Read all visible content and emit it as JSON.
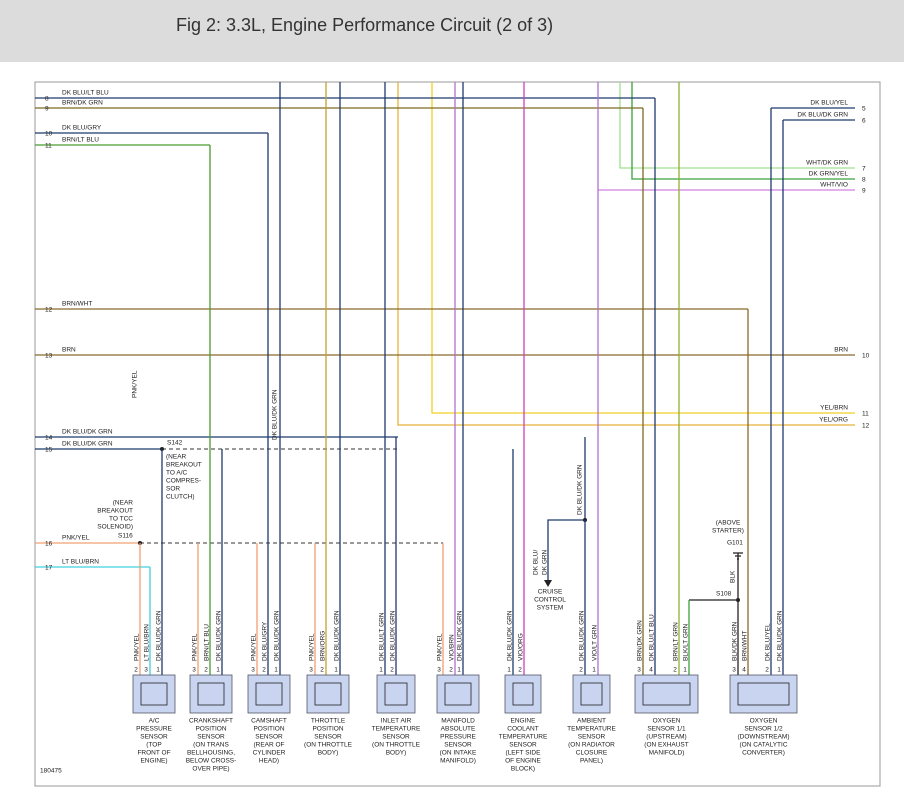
{
  "header": {
    "title": "Fig 2: 3.3L, Engine Performance Circuit (2 of 3)"
  },
  "diagram": {
    "left_pins": [
      {
        "pin": "8",
        "wire": "DK BLU/LT BLU"
      },
      {
        "pin": "9",
        "wire": "BRN/DK GRN"
      },
      {
        "pin": "10",
        "wire": "DK BLU/GRY"
      },
      {
        "pin": "11",
        "wire": "BRN/LT BLU"
      },
      {
        "pin": "12",
        "wire": "BRN/WHT"
      },
      {
        "pin": "13",
        "wire": "BRN"
      },
      {
        "pin": "14",
        "wire": "DK BLU/DK GRN"
      },
      {
        "pin": "15",
        "wire": "DK BLU/DK GRN"
      },
      {
        "pin": "16",
        "wire": "PNK/YEL"
      },
      {
        "pin": "17",
        "wire": "LT BLU/BRN"
      }
    ],
    "right_pins": [
      {
        "pin": "5",
        "wire": "DK BLU/YEL"
      },
      {
        "pin": "6",
        "wire": "DK BLU/DK GRN"
      },
      {
        "pin": "7",
        "wire": "WHT/DK GRN"
      },
      {
        "pin": "8",
        "wire": "DK GRN/YEL"
      },
      {
        "pin": "9",
        "wire": "WHT/VIO"
      },
      {
        "pin": "10",
        "wire": "BRN"
      },
      {
        "pin": "11",
        "wire": "YEL/BRN"
      },
      {
        "pin": "12",
        "wire": "YEL/ORG"
      }
    ],
    "splices": {
      "s142": {
        "id": "S142",
        "note": [
          "(NEAR",
          "BREAKOUT",
          "TO A/C",
          "COMPRES-",
          "SOR",
          "CLUTCH)"
        ]
      },
      "s116": {
        "id": "S116",
        "note": [
          "(NEAR",
          "BREAKOUT",
          "TO TCC",
          "SOLENOID)"
        ]
      },
      "s108": {
        "id": "S108"
      }
    },
    "ground": {
      "id": "G101",
      "note": [
        "(ABOVE",
        "STARTER)"
      ]
    },
    "cruise": [
      "CRUISE",
      "CONTROL",
      "SYSTEM"
    ],
    "vertical_labels": [
      "PNK/YEL",
      "DK BLU/DK GRN",
      "DK BLU/DK GRN",
      "DK BLU/",
      "DK GRN",
      "BLK"
    ],
    "sensors": [
      {
        "pins": [
          "2",
          "3",
          "1"
        ],
        "wires": [
          "PNK/YEL",
          "LT BLU/BRN",
          "DK BLU/DK GRN"
        ],
        "name": [
          "A/C",
          "PRESSURE",
          "SENSOR",
          "(TOP",
          "FRONT OF",
          "ENGINE)"
        ]
      },
      {
        "pins": [
          "3",
          "2",
          "1"
        ],
        "wires": [
          "PNK/YEL",
          "BRN/LT BLU",
          "DK BLU/DK GRN"
        ],
        "name": [
          "CRANKSHAFT",
          "POSITION",
          "SENSOR",
          "(ON TRANS",
          "BELLHOUSING,",
          "BELOW CROSS-",
          "OVER PIPE)"
        ]
      },
      {
        "pins": [
          "3",
          "2",
          "1"
        ],
        "wires": [
          "PNK/YEL",
          "DK BLU/GRY",
          "DK BLU/DK GRN"
        ],
        "name": [
          "CAMSHAFT",
          "POSITION",
          "SENSOR",
          "(REAR OF",
          "CYLINDER",
          "HEAD)"
        ]
      },
      {
        "pins": [
          "3",
          "2",
          "1"
        ],
        "wires": [
          "PNK/YEL",
          "BRN/ORG",
          "DK BLU/DK GRN"
        ],
        "name": [
          "THROTTLE",
          "POSITION",
          "SENSOR",
          "(ON THROTTLE",
          "BODY)"
        ]
      },
      {
        "pins": [
          "1",
          "2"
        ],
        "wires": [
          "DK BLU/LT GRN",
          "DK BLU/DK GRN"
        ],
        "name": [
          "INLET AIR",
          "TEMPERATURE",
          "SENSOR",
          "(ON THROTTLE",
          "BODY)"
        ]
      },
      {
        "pins": [
          "3",
          "2",
          "1"
        ],
        "wires": [
          "PNK/YEL",
          "VIO/BRN",
          "DK BLU/DK GRN"
        ],
        "name": [
          "MANIFOLD",
          "ABSOLUTE",
          "PRESSURE",
          "SENSOR",
          "(ON INTAKE",
          "MANIFOLD)"
        ]
      },
      {
        "pins": [
          "1",
          "2"
        ],
        "wires": [
          "DK BLU/DK GRN",
          "VIO/ORG"
        ],
        "name": [
          "ENGINE",
          "COOLANT",
          "TEMPERATURE",
          "SENSOR",
          "(LEFT SIDE",
          "OF ENGINE",
          "BLOCK)"
        ]
      },
      {
        "pins": [
          "2",
          "1"
        ],
        "wires": [
          "DK BLU/DK GRN",
          "VIO/LT GRN"
        ],
        "name": [
          "AMBIENT",
          "TEMPERATURE",
          "SENSOR",
          "(ON RADIATOR",
          "CLOSURE",
          "PANEL)"
        ]
      },
      {
        "pins": [
          "3",
          "4",
          "2",
          "1"
        ],
        "wires": [
          "BRN/DK GRN",
          "DK BLU/LT BLU",
          "BRN/LT GRN",
          "BLK/LT GRN"
        ],
        "name": [
          "OXYGEN",
          "SENSOR 1/1",
          "(UPSTREAM)",
          "(ON EXHAUST",
          "MANIFOLD)"
        ]
      },
      {
        "pins": [
          "3",
          "4",
          "2",
          "1"
        ],
        "wires": [
          "BLK/DK GRN",
          "BRN/WHT",
          "DK BLU/YEL",
          "DK BLU/DK GRN"
        ],
        "name": [
          "OXYGEN",
          "SENSOR 1/2",
          "(DOWNSTREAM)",
          "(ON CATALYTIC",
          "CONVERTER)"
        ]
      }
    ],
    "figure_id": "180475"
  }
}
